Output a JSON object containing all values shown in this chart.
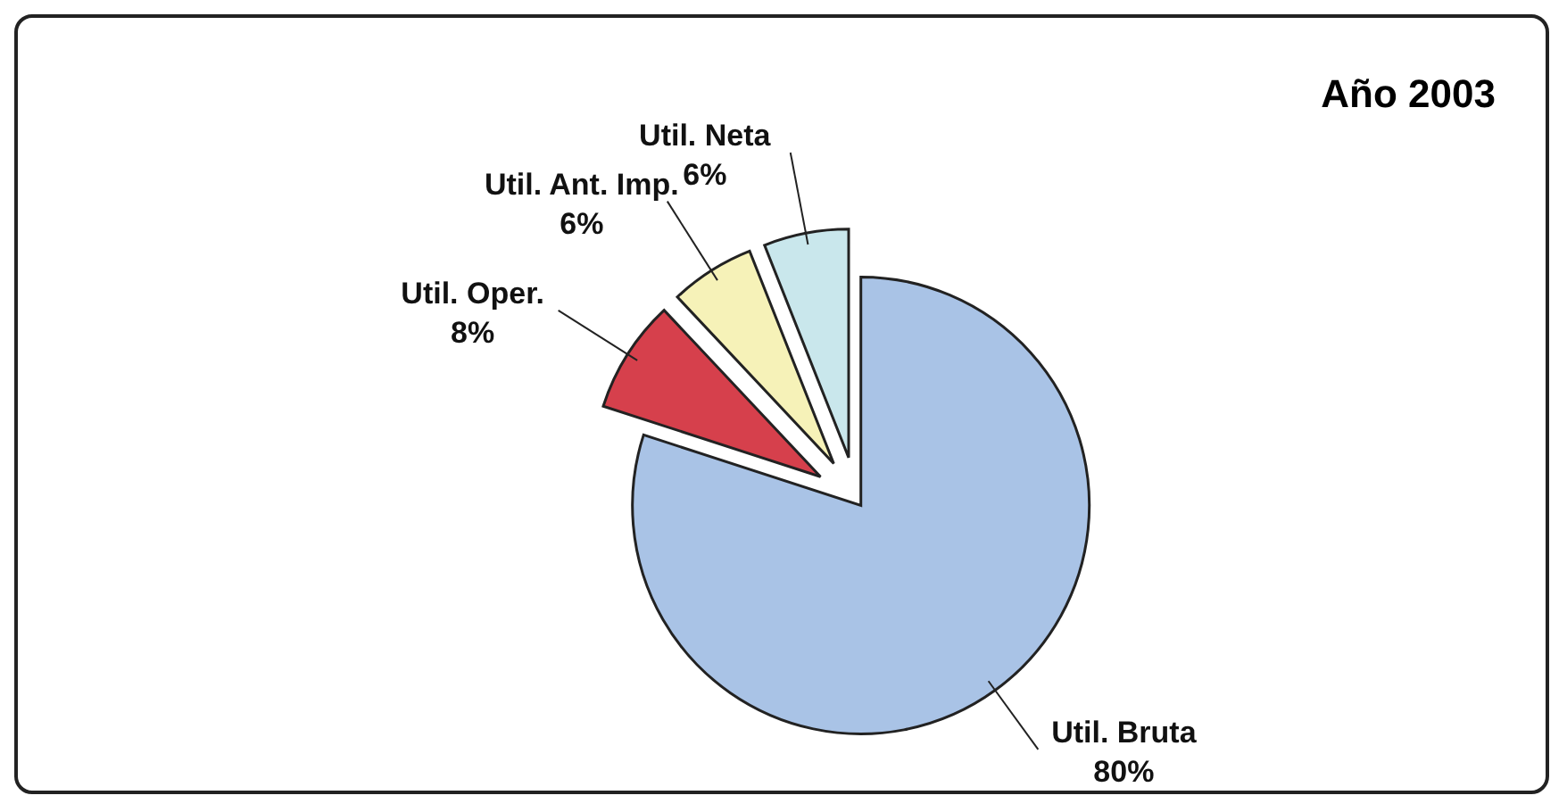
{
  "chart_data": {
    "type": "pie",
    "title": "Año 2003",
    "categories": [
      "Util. Bruta",
      "Util. Oper.",
      "Util. Ant. Imp.",
      "Util. Neta"
    ],
    "values": [
      80,
      8,
      6,
      6
    ],
    "value_labels": [
      "80%",
      "8%",
      "6%",
      "6%"
    ],
    "colors": [
      "#a9c3e6",
      "#d6404c",
      "#f6f2b8",
      "#c9e7ec"
    ]
  }
}
